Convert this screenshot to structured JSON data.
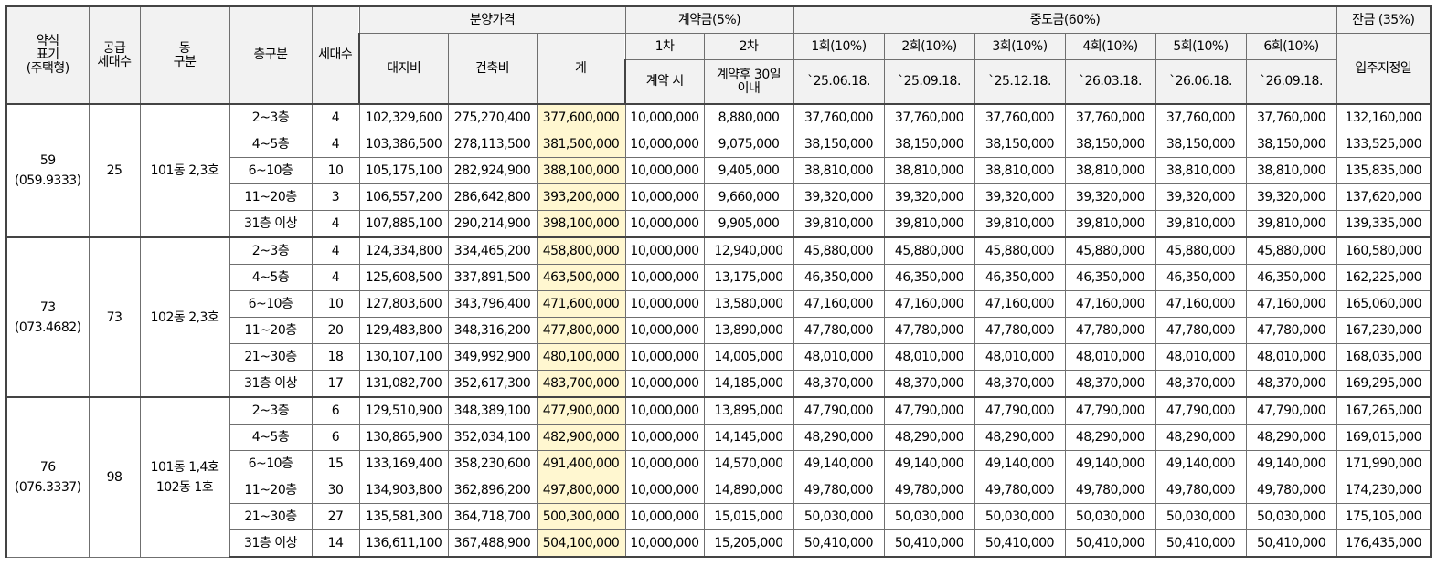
{
  "headers": {
    "type": "약식\n표기\n(주택형)",
    "supply": "공급\n세대수",
    "dong": "동\n구분",
    "floor": "층구분",
    "units": "세대수",
    "sale_price": "분양가격",
    "land": "대지비",
    "building": "건축비",
    "total": "계",
    "deposit": "계약금(5%)",
    "deposit_1": "1차",
    "deposit_2": "2차",
    "deposit_1_when": "계약 시",
    "deposit_2_when": "계약후 30일\n이내",
    "middle": "중도금(60%)",
    "middle_installments": [
      {
        "label": "1회(10%)",
        "date": "`25.06.18."
      },
      {
        "label": "2회(10%)",
        "date": "`25.09.18."
      },
      {
        "label": "3회(10%)",
        "date": "`25.12.18."
      },
      {
        "label": "4회(10%)",
        "date": "`26.03.18."
      },
      {
        "label": "5회(10%)",
        "date": "`26.06.18."
      },
      {
        "label": "6회(10%)",
        "date": "`26.09.18."
      }
    ],
    "balance": "잔금 (35%)",
    "balance_when": "입주지정일"
  },
  "groups": [
    {
      "type": "59\n(059.9333)",
      "supply": "25",
      "dong": "101동 2,3호",
      "rows": [
        {
          "floor": "2~3층",
          "units": "4",
          "land": "102,329,600",
          "building": "275,270,400",
          "total": "377,600,000",
          "dep1": "10,000,000",
          "dep2": "8,880,000",
          "mid": "37,760,000",
          "balance": "132,160,000"
        },
        {
          "floor": "4~5층",
          "units": "4",
          "land": "103,386,500",
          "building": "278,113,500",
          "total": "381,500,000",
          "dep1": "10,000,000",
          "dep2": "9,075,000",
          "mid": "38,150,000",
          "balance": "133,525,000"
        },
        {
          "floor": "6~10층",
          "units": "10",
          "land": "105,175,100",
          "building": "282,924,900",
          "total": "388,100,000",
          "dep1": "10,000,000",
          "dep2": "9,405,000",
          "mid": "38,810,000",
          "balance": "135,835,000"
        },
        {
          "floor": "11~20층",
          "units": "3",
          "land": "106,557,200",
          "building": "286,642,800",
          "total": "393,200,000",
          "dep1": "10,000,000",
          "dep2": "9,660,000",
          "mid": "39,320,000",
          "balance": "137,620,000"
        },
        {
          "floor": "31층 이상",
          "units": "4",
          "land": "107,885,100",
          "building": "290,214,900",
          "total": "398,100,000",
          "dep1": "10,000,000",
          "dep2": "9,905,000",
          "mid": "39,810,000",
          "balance": "139,335,000"
        }
      ]
    },
    {
      "type": "73\n(073.4682)",
      "supply": "73",
      "dong": "102동 2,3호",
      "rows": [
        {
          "floor": "2~3층",
          "units": "4",
          "land": "124,334,800",
          "building": "334,465,200",
          "total": "458,800,000",
          "dep1": "10,000,000",
          "dep2": "12,940,000",
          "mid": "45,880,000",
          "balance": "160,580,000"
        },
        {
          "floor": "4~5층",
          "units": "4",
          "land": "125,608,500",
          "building": "337,891,500",
          "total": "463,500,000",
          "dep1": "10,000,000",
          "dep2": "13,175,000",
          "mid": "46,350,000",
          "balance": "162,225,000"
        },
        {
          "floor": "6~10층",
          "units": "10",
          "land": "127,803,600",
          "building": "343,796,400",
          "total": "471,600,000",
          "dep1": "10,000,000",
          "dep2": "13,580,000",
          "mid": "47,160,000",
          "balance": "165,060,000"
        },
        {
          "floor": "11~20층",
          "units": "20",
          "land": "129,483,800",
          "building": "348,316,200",
          "total": "477,800,000",
          "dep1": "10,000,000",
          "dep2": "13,890,000",
          "mid": "47,780,000",
          "balance": "167,230,000"
        },
        {
          "floor": "21~30층",
          "units": "18",
          "land": "130,107,100",
          "building": "349,992,900",
          "total": "480,100,000",
          "dep1": "10,000,000",
          "dep2": "14,005,000",
          "mid": "48,010,000",
          "balance": "168,035,000"
        },
        {
          "floor": "31층 이상",
          "units": "17",
          "land": "131,082,700",
          "building": "352,617,300",
          "total": "483,700,000",
          "dep1": "10,000,000",
          "dep2": "14,185,000",
          "mid": "48,370,000",
          "balance": "169,295,000"
        }
      ]
    },
    {
      "type": "76\n(076.3337)",
      "supply": "98",
      "dong": "101동 1,4호\n102동 1호",
      "rows": [
        {
          "floor": "2~3층",
          "units": "6",
          "land": "129,510,900",
          "building": "348,389,100",
          "total": "477,900,000",
          "dep1": "10,000,000",
          "dep2": "13,895,000",
          "mid": "47,790,000",
          "balance": "167,265,000"
        },
        {
          "floor": "4~5층",
          "units": "6",
          "land": "130,865,900",
          "building": "352,034,100",
          "total": "482,900,000",
          "dep1": "10,000,000",
          "dep2": "14,145,000",
          "mid": "48,290,000",
          "balance": "169,015,000"
        },
        {
          "floor": "6~10층",
          "units": "15",
          "land": "133,169,400",
          "building": "358,230,600",
          "total": "491,400,000",
          "dep1": "10,000,000",
          "dep2": "14,570,000",
          "mid": "49,140,000",
          "balance": "171,990,000"
        },
        {
          "floor": "11~20층",
          "units": "30",
          "land": "134,903,800",
          "building": "362,896,200",
          "total": "497,800,000",
          "dep1": "10,000,000",
          "dep2": "14,890,000",
          "mid": "49,780,000",
          "balance": "174,230,000"
        },
        {
          "floor": "21~30층",
          "units": "27",
          "land": "135,581,300",
          "building": "364,718,700",
          "total": "500,300,000",
          "dep1": "10,000,000",
          "dep2": "15,015,000",
          "mid": "50,030,000",
          "balance": "175,105,000"
        },
        {
          "floor": "31층 이상",
          "units": "14",
          "land": "136,611,100",
          "building": "367,488,900",
          "total": "504,100,000",
          "dep1": "10,000,000",
          "dep2": "15,205,000",
          "mid": "50,410,000",
          "balance": "176,435,000"
        }
      ]
    }
  ]
}
